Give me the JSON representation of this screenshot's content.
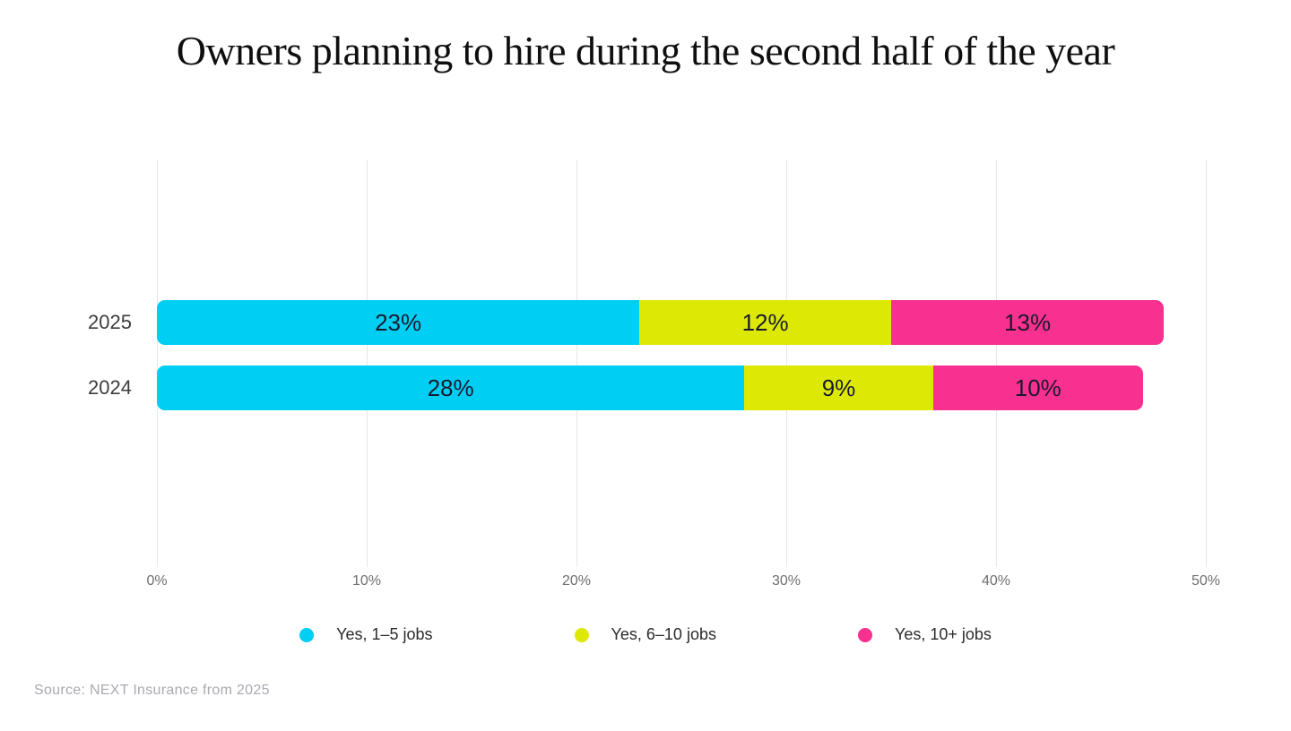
{
  "chart_data": {
    "type": "bar",
    "orientation": "horizontal",
    "stacked": true,
    "title": "Owners planning to hire during the second half of the year",
    "categories": [
      "2025",
      "2024"
    ],
    "series": [
      {
        "name": "Yes, 1–5 jobs",
        "color": "#00CEF3",
        "values": [
          23,
          28
        ]
      },
      {
        "name": "Yes, 6–10 jobs",
        "color": "#DDE905",
        "values": [
          12,
          9
        ]
      },
      {
        "name": "Yes, 10+ jobs",
        "color": "#F8308F",
        "values": [
          13,
          10
        ]
      }
    ],
    "value_suffix": "%",
    "xlabel": "",
    "ylabel": "",
    "x_ticks": [
      "0%",
      "10%",
      "20%",
      "30%",
      "40%",
      "50%"
    ],
    "xlim": [
      0,
      50
    ],
    "grid": "vertical-gridlines",
    "legend_position": "bottom",
    "value_label_color": "#1a1a2e"
  },
  "source_note": "Source: NEXT Insurance from 2025"
}
